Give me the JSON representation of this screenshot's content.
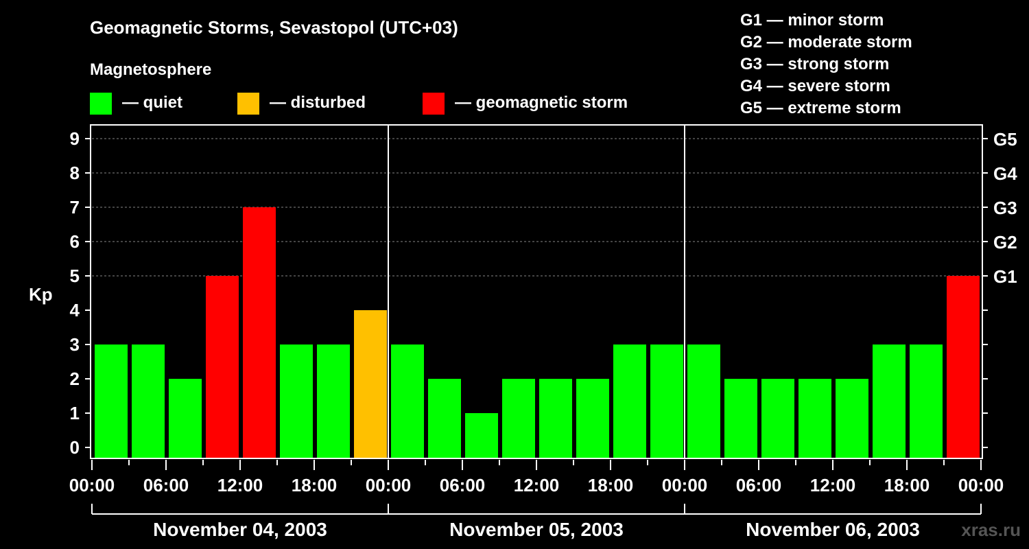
{
  "chart_data": {
    "type": "bar",
    "title": "Geomagnetic Storms, Sevastopol (UTC+03)",
    "legend_title": "Magnetosphere",
    "legend": [
      {
        "label": "— quiet",
        "color": "#00ff00"
      },
      {
        "label": "— disturbed",
        "color": "#ffc000"
      },
      {
        "label": "— geomagnetic storm",
        "color": "#ff0000"
      }
    ],
    "scale_legend": [
      "G1 — minor storm",
      "G2 — moderate storm",
      "G3 — strong storm",
      "G4 — severe storm",
      "G5 — extreme storm"
    ],
    "ylabel": "Kp",
    "ylim": [
      0,
      9
    ],
    "yticks": [
      "0",
      "1",
      "2",
      "3",
      "4",
      "5",
      "6",
      "7",
      "8",
      "9"
    ],
    "right_ticks": [
      {
        "kp": 5,
        "label": "G1"
      },
      {
        "kp": 6,
        "label": "G2"
      },
      {
        "kp": 7,
        "label": "G3"
      },
      {
        "kp": 8,
        "label": "G4"
      },
      {
        "kp": 9,
        "label": "G5"
      }
    ],
    "xtick_labels": [
      "00:00",
      "06:00",
      "12:00",
      "18:00",
      "00:00",
      "06:00",
      "12:00",
      "18:00",
      "00:00",
      "06:00",
      "12:00",
      "18:00",
      "00:00"
    ],
    "days": [
      "November 04, 2003",
      "November 05, 2003",
      "November 06, 2003"
    ],
    "interval_hours": 3,
    "values": [
      3,
      3,
      2,
      5,
      7,
      3,
      3,
      4,
      3,
      2,
      1,
      2,
      2,
      2,
      3,
      3,
      3,
      2,
      2,
      2,
      2,
      3,
      3,
      5
    ],
    "thresholds": {
      "disturbed": 4,
      "storm": 5
    },
    "grid": true
  },
  "watermark": "xras.ru"
}
